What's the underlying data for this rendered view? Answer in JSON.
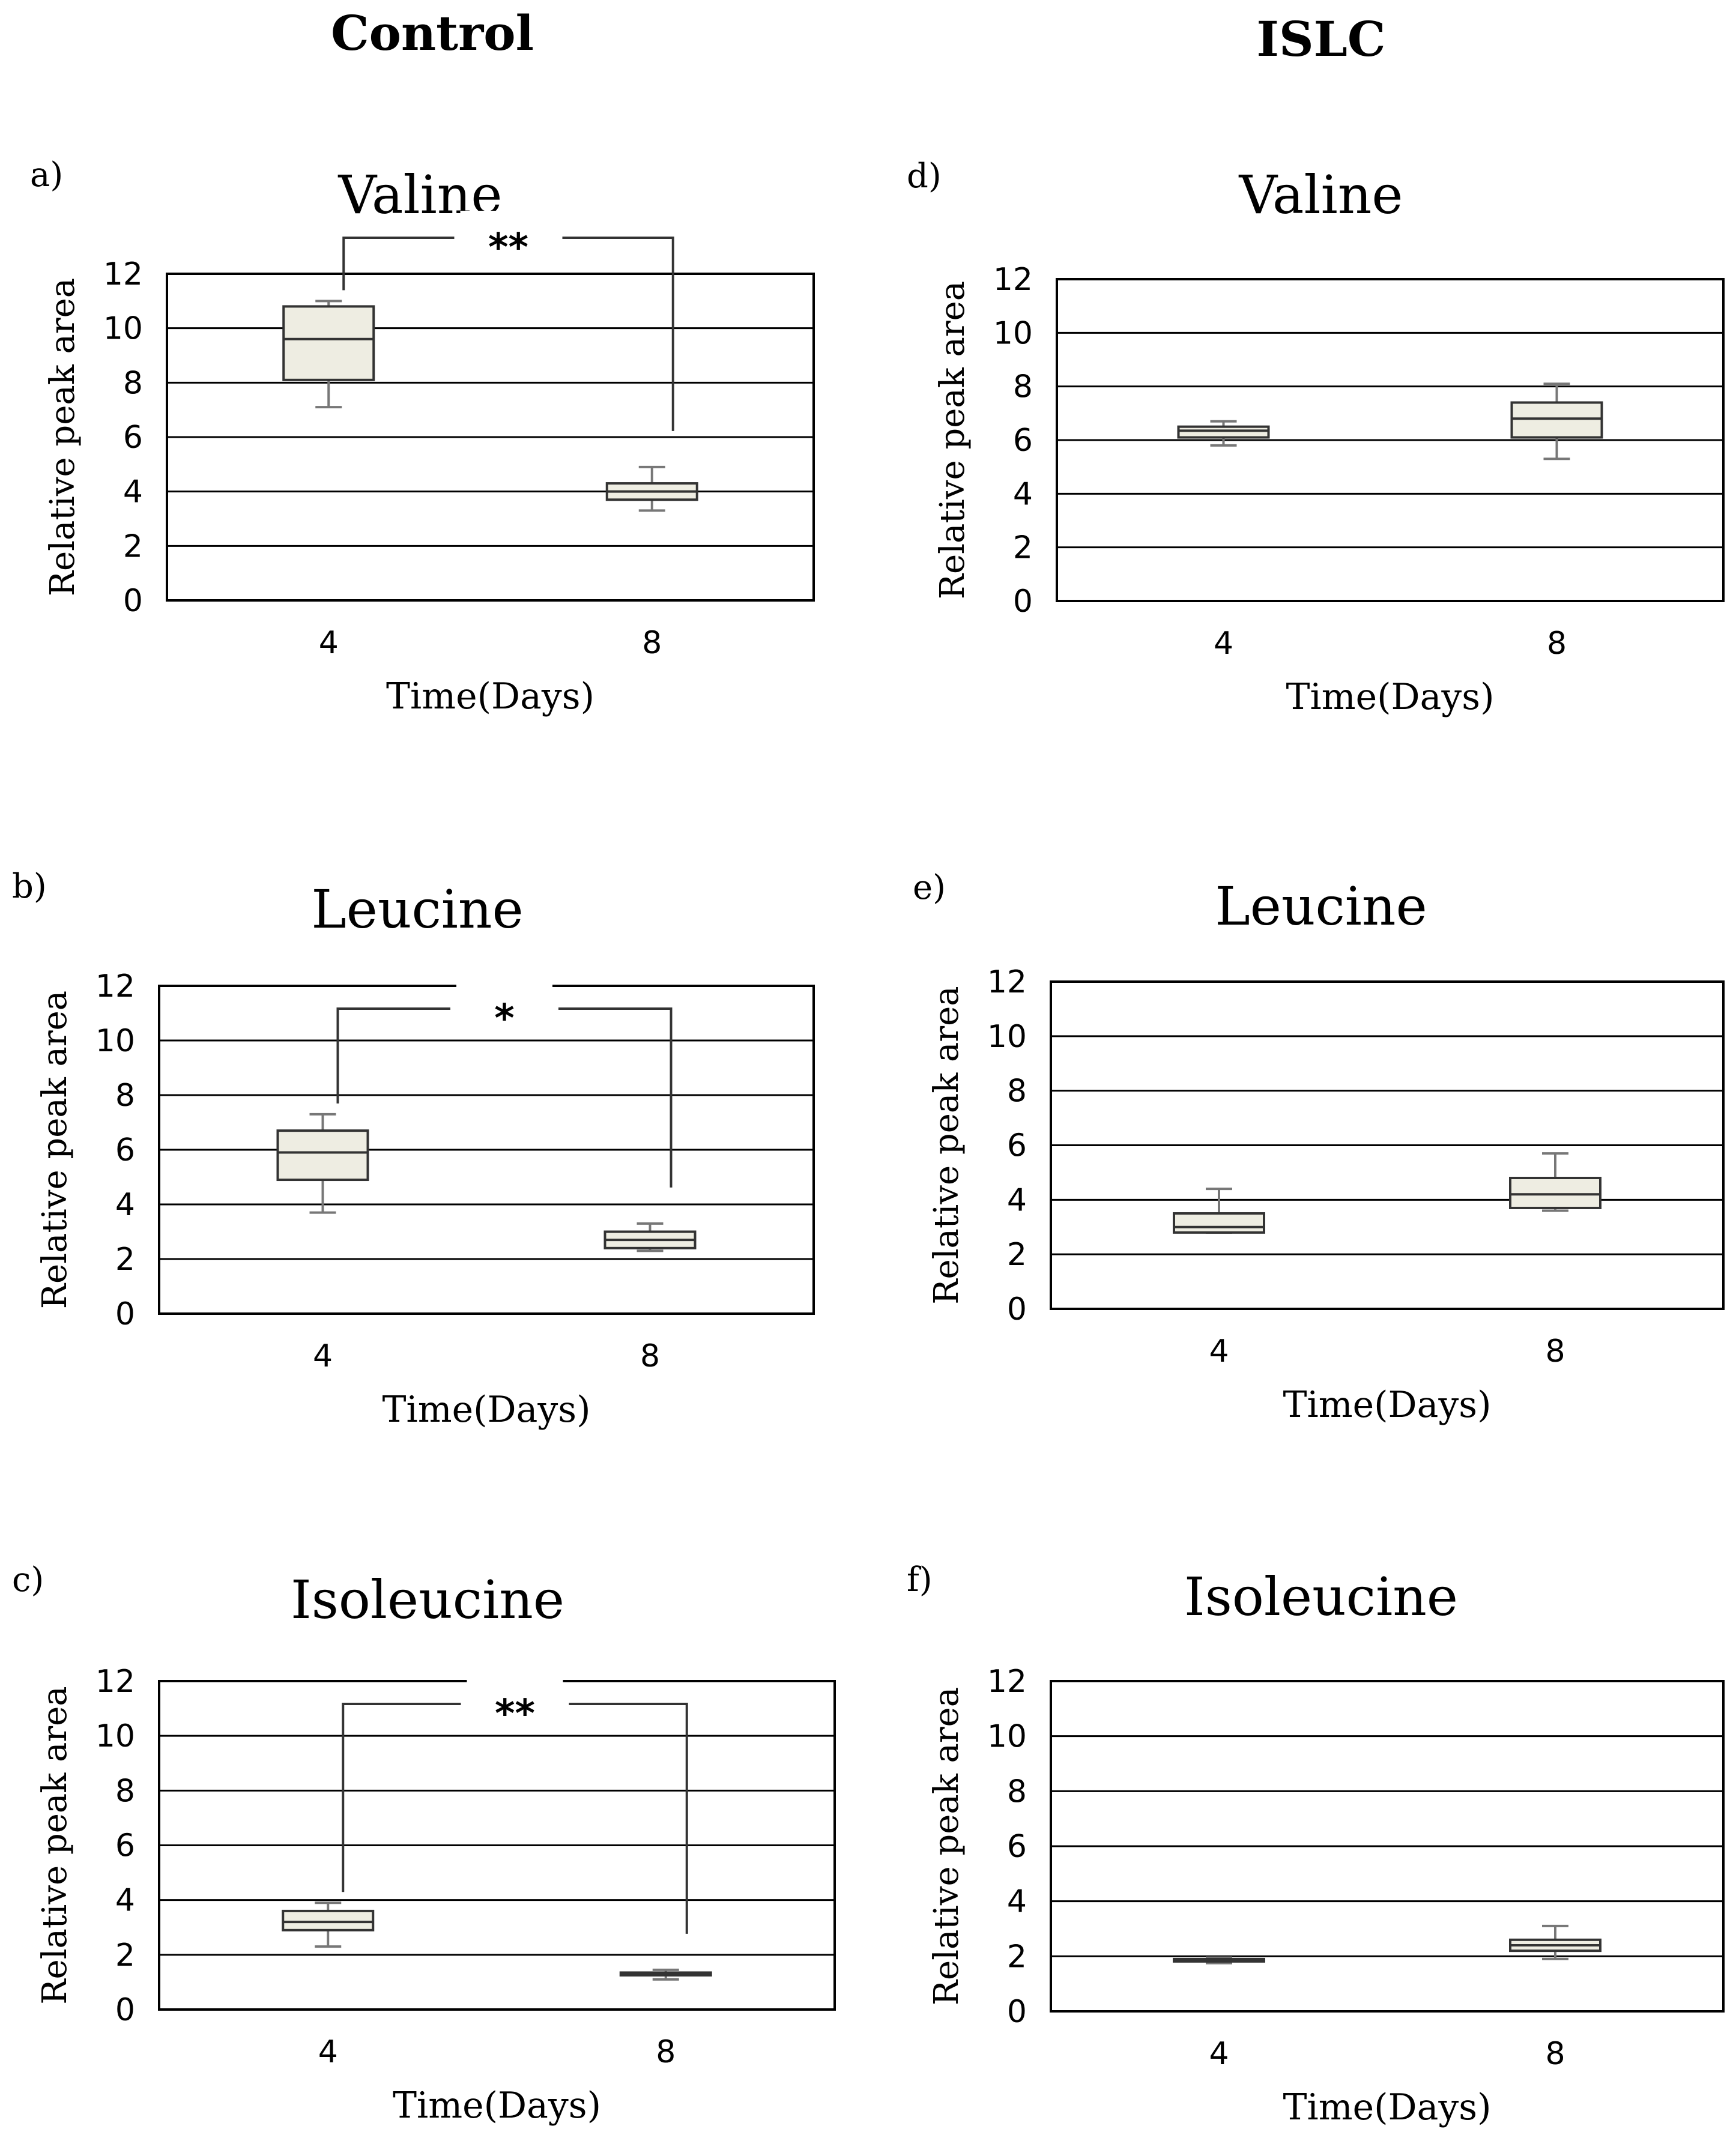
{
  "columns": {
    "control": "Control",
    "islc": "ISLC"
  },
  "colors": {
    "box_fill": "#eeede2",
    "box_stroke": "#333333",
    "grid": "#000000",
    "whisker": "#777777",
    "bracket": "#333333"
  },
  "chart_data": [
    {
      "type": "box",
      "panel": "a)",
      "title": "Valine",
      "xlabel": "Time(Days)",
      "ylabel": "Relative peak area",
      "ylim": [
        0,
        12
      ],
      "yticks": [
        "0",
        "2",
        "4",
        "6",
        "8",
        "10",
        "12"
      ],
      "categories": [
        "4",
        "8"
      ],
      "boxes": [
        {
          "min": 7.1,
          "q1": 8.1,
          "median": 9.6,
          "q3": 10.8,
          "max": 11.0
        },
        {
          "min": 3.3,
          "q1": 3.7,
          "median": 4.0,
          "q3": 4.3,
          "max": 4.9
        }
      ],
      "significance": "**"
    },
    {
      "type": "box",
      "panel": "b)",
      "title": "Leucine",
      "xlabel": "Time(Days)",
      "ylabel": "Relative peak area",
      "ylim": [
        0,
        12
      ],
      "yticks": [
        "0",
        "2",
        "4",
        "6",
        "8",
        "10",
        "12"
      ],
      "categories": [
        "4",
        "8"
      ],
      "boxes": [
        {
          "min": 3.7,
          "q1": 4.9,
          "median": 5.9,
          "q3": 6.7,
          "max": 7.3
        },
        {
          "min": 2.3,
          "q1": 2.4,
          "median": 2.7,
          "q3": 3.0,
          "max": 3.3
        }
      ],
      "significance": "*"
    },
    {
      "type": "box",
      "panel": "c)",
      "title": "Isoleucine",
      "xlabel": "Time(Days)",
      "ylabel": "Relative peak area",
      "ylim": [
        0,
        12
      ],
      "yticks": [
        "0",
        "2",
        "4",
        "6",
        "8",
        "10",
        "12"
      ],
      "categories": [
        "4",
        "8"
      ],
      "boxes": [
        {
          "min": 2.3,
          "q1": 2.9,
          "median": 3.2,
          "q3": 3.6,
          "max": 3.9
        },
        {
          "min": 1.1,
          "q1": 1.25,
          "median": 1.3,
          "q3": 1.35,
          "max": 1.45
        }
      ],
      "significance": "**"
    },
    {
      "type": "box",
      "panel": "d)",
      "title": "Valine",
      "xlabel": "Time(Days)",
      "ylabel": "Relative peak area",
      "ylim": [
        0,
        12
      ],
      "yticks": [
        "0",
        "2",
        "4",
        "6",
        "8",
        "10",
        "12"
      ],
      "categories": [
        "4",
        "8"
      ],
      "boxes": [
        {
          "min": 5.8,
          "q1": 6.1,
          "median": 6.35,
          "q3": 6.5,
          "max": 6.7
        },
        {
          "min": 5.3,
          "q1": 6.1,
          "median": 6.8,
          "q3": 7.4,
          "max": 8.1
        }
      ]
    },
    {
      "type": "box",
      "panel": "e)",
      "title": "Leucine",
      "xlabel": "Time(Days)",
      "ylabel": "Relative peak area",
      "ylim": [
        0,
        12
      ],
      "yticks": [
        "0",
        "2",
        "4",
        "6",
        "8",
        "10",
        "12"
      ],
      "categories": [
        "4",
        "8"
      ],
      "boxes": [
        {
          "min": 2.8,
          "q1": 2.8,
          "median": 3.0,
          "q3": 3.5,
          "max": 4.4
        },
        {
          "min": 3.6,
          "q1": 3.7,
          "median": 4.2,
          "q3": 4.8,
          "max": 5.7
        }
      ]
    },
    {
      "type": "box",
      "panel": "f)",
      "title": "Isoleucine",
      "xlabel": "Time(Days)",
      "ylabel": "Relative peak area",
      "ylim": [
        0,
        12
      ],
      "yticks": [
        "0",
        "2",
        "4",
        "6",
        "8",
        "10",
        "12"
      ],
      "categories": [
        "4",
        "8"
      ],
      "boxes": [
        {
          "min": 1.75,
          "q1": 1.82,
          "median": 1.86,
          "q3": 1.9,
          "max": 1.95
        },
        {
          "min": 1.9,
          "q1": 2.2,
          "median": 2.4,
          "q3": 2.6,
          "max": 3.1
        }
      ]
    }
  ]
}
